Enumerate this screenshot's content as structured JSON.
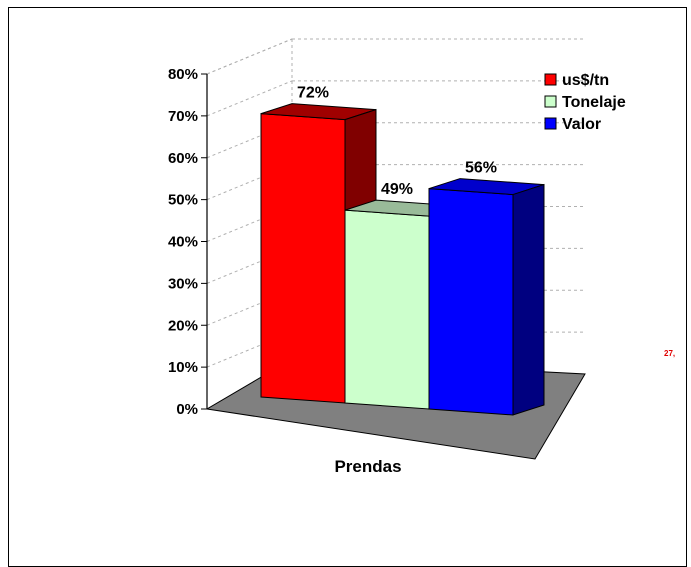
{
  "chart_data": {
    "type": "bar",
    "categories": [
      "Prendas"
    ],
    "series": [
      {
        "name": "us$/tn",
        "values": [
          72
        ],
        "color": "#ff0000",
        "side_color": "#800000",
        "top_color": "#a00000"
      },
      {
        "name": "Tonelaje",
        "values": [
          49
        ],
        "color": "#ccffcc",
        "side_color": "#99c299",
        "top_color": "#99bb99"
      },
      {
        "name": "Valor",
        "values": [
          56
        ],
        "color": "#0000ff",
        "side_color": "#000080",
        "top_color": "#0000cc"
      }
    ],
    "data_labels": [
      "72%",
      "49%",
      "56%"
    ],
    "yticks": [
      "0%",
      "10%",
      "20%",
      "30%",
      "40%",
      "50%",
      "60%",
      "70%",
      "80%"
    ],
    "ylim": [
      0,
      80
    ],
    "grid": true,
    "legend": "top-right",
    "floor_color": "#808080",
    "note": "27,"
  }
}
